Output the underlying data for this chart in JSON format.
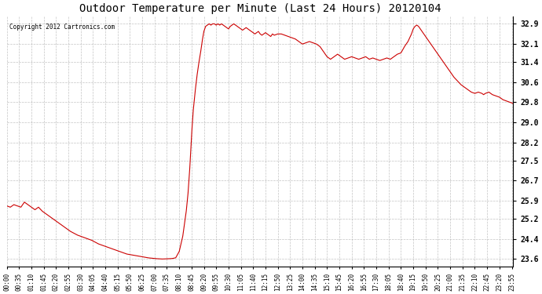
{
  "title": "Outdoor Temperature per Minute (Last 24 Hours) 20120104",
  "copyright_text": "Copyright 2012 Cartronics.com",
  "line_color": "#cc0000",
  "background_color": "#ffffff",
  "plot_bg_color": "#ffffff",
  "grid_color": "#aaaaaa",
  "yticks": [
    23.6,
    24.4,
    25.2,
    25.9,
    26.7,
    27.5,
    28.2,
    29.0,
    29.8,
    30.6,
    31.4,
    32.1,
    32.9
  ],
  "ylim": [
    23.3,
    33.2
  ],
  "xtick_labels": [
    "00:00",
    "00:35",
    "01:10",
    "01:45",
    "02:20",
    "02:55",
    "03:30",
    "04:05",
    "04:40",
    "05:15",
    "05:50",
    "06:25",
    "07:00",
    "07:35",
    "08:10",
    "08:45",
    "09:20",
    "09:55",
    "10:30",
    "11:05",
    "11:40",
    "12:15",
    "12:50",
    "13:25",
    "14:00",
    "14:35",
    "15:10",
    "15:45",
    "16:20",
    "16:55",
    "17:30",
    "18:05",
    "18:40",
    "19:15",
    "19:50",
    "20:25",
    "21:00",
    "21:35",
    "22:10",
    "22:45",
    "23:20",
    "23:55"
  ],
  "key_points": [
    [
      0,
      25.7
    ],
    [
      10,
      25.65
    ],
    [
      20,
      25.75
    ],
    [
      30,
      25.7
    ],
    [
      40,
      25.65
    ],
    [
      50,
      25.85
    ],
    [
      60,
      25.75
    ],
    [
      70,
      25.65
    ],
    [
      80,
      25.55
    ],
    [
      90,
      25.65
    ],
    [
      100,
      25.5
    ],
    [
      110,
      25.4
    ],
    [
      120,
      25.3
    ],
    [
      140,
      25.1
    ],
    [
      160,
      24.9
    ],
    [
      180,
      24.7
    ],
    [
      200,
      24.55
    ],
    [
      220,
      24.45
    ],
    [
      240,
      24.35
    ],
    [
      260,
      24.2
    ],
    [
      280,
      24.1
    ],
    [
      300,
      24.0
    ],
    [
      320,
      23.9
    ],
    [
      340,
      23.8
    ],
    [
      360,
      23.75
    ],
    [
      380,
      23.7
    ],
    [
      400,
      23.65
    ],
    [
      420,
      23.62
    ],
    [
      440,
      23.6
    ],
    [
      460,
      23.61
    ],
    [
      470,
      23.62
    ],
    [
      480,
      23.65
    ],
    [
      490,
      23.9
    ],
    [
      500,
      24.5
    ],
    [
      510,
      25.5
    ],
    [
      515,
      26.2
    ],
    [
      520,
      27.2
    ],
    [
      525,
      28.5
    ],
    [
      530,
      29.5
    ],
    [
      535,
      30.2
    ],
    [
      540,
      30.8
    ],
    [
      545,
      31.3
    ],
    [
      550,
      31.7
    ],
    [
      555,
      32.2
    ],
    [
      560,
      32.6
    ],
    [
      565,
      32.8
    ],
    [
      570,
      32.85
    ],
    [
      575,
      32.9
    ],
    [
      580,
      32.85
    ],
    [
      585,
      32.9
    ],
    [
      590,
      32.9
    ],
    [
      595,
      32.85
    ],
    [
      600,
      32.9
    ],
    [
      605,
      32.85
    ],
    [
      610,
      32.9
    ],
    [
      615,
      32.85
    ],
    [
      620,
      32.8
    ],
    [
      625,
      32.75
    ],
    [
      630,
      32.7
    ],
    [
      635,
      32.8
    ],
    [
      640,
      32.85
    ],
    [
      645,
      32.9
    ],
    [
      650,
      32.85
    ],
    [
      655,
      32.8
    ],
    [
      660,
      32.75
    ],
    [
      665,
      32.7
    ],
    [
      670,
      32.65
    ],
    [
      675,
      32.7
    ],
    [
      680,
      32.75
    ],
    [
      685,
      32.7
    ],
    [
      690,
      32.65
    ],
    [
      695,
      32.6
    ],
    [
      700,
      32.55
    ],
    [
      705,
      32.5
    ],
    [
      710,
      32.55
    ],
    [
      715,
      32.6
    ],
    [
      720,
      32.5
    ],
    [
      725,
      32.45
    ],
    [
      730,
      32.5
    ],
    [
      735,
      32.55
    ],
    [
      740,
      32.5
    ],
    [
      745,
      32.45
    ],
    [
      750,
      32.4
    ],
    [
      755,
      32.5
    ],
    [
      760,
      32.45
    ],
    [
      770,
      32.5
    ],
    [
      780,
      32.5
    ],
    [
      790,
      32.45
    ],
    [
      800,
      32.4
    ],
    [
      810,
      32.35
    ],
    [
      820,
      32.3
    ],
    [
      830,
      32.2
    ],
    [
      840,
      32.1
    ],
    [
      850,
      32.15
    ],
    [
      860,
      32.2
    ],
    [
      870,
      32.15
    ],
    [
      880,
      32.1
    ],
    [
      890,
      32.0
    ],
    [
      900,
      31.8
    ],
    [
      910,
      31.6
    ],
    [
      920,
      31.5
    ],
    [
      930,
      31.6
    ],
    [
      940,
      31.7
    ],
    [
      950,
      31.6
    ],
    [
      960,
      31.5
    ],
    [
      970,
      31.55
    ],
    [
      980,
      31.6
    ],
    [
      990,
      31.55
    ],
    [
      1000,
      31.5
    ],
    [
      1010,
      31.55
    ],
    [
      1020,
      31.6
    ],
    [
      1030,
      31.5
    ],
    [
      1040,
      31.55
    ],
    [
      1050,
      31.5
    ],
    [
      1060,
      31.45
    ],
    [
      1070,
      31.5
    ],
    [
      1080,
      31.55
    ],
    [
      1090,
      31.5
    ],
    [
      1100,
      31.6
    ],
    [
      1110,
      31.7
    ],
    [
      1120,
      31.75
    ],
    [
      1130,
      32.0
    ],
    [
      1140,
      32.2
    ],
    [
      1150,
      32.5
    ],
    [
      1155,
      32.7
    ],
    [
      1160,
      32.8
    ],
    [
      1165,
      32.85
    ],
    [
      1170,
      32.8
    ],
    [
      1175,
      32.7
    ],
    [
      1180,
      32.6
    ],
    [
      1185,
      32.5
    ],
    [
      1190,
      32.4
    ],
    [
      1195,
      32.3
    ],
    [
      1200,
      32.2
    ],
    [
      1210,
      32.0
    ],
    [
      1220,
      31.8
    ],
    [
      1230,
      31.6
    ],
    [
      1240,
      31.4
    ],
    [
      1250,
      31.2
    ],
    [
      1260,
      31.0
    ],
    [
      1270,
      30.8
    ],
    [
      1280,
      30.65
    ],
    [
      1290,
      30.5
    ],
    [
      1300,
      30.4
    ],
    [
      1310,
      30.3
    ],
    [
      1320,
      30.2
    ],
    [
      1330,
      30.15
    ],
    [
      1340,
      30.2
    ],
    [
      1350,
      30.15
    ],
    [
      1355,
      30.1
    ],
    [
      1360,
      30.15
    ],
    [
      1370,
      30.2
    ],
    [
      1375,
      30.15
    ],
    [
      1380,
      30.1
    ],
    [
      1390,
      30.05
    ],
    [
      1400,
      30.0
    ],
    [
      1410,
      29.9
    ],
    [
      1420,
      29.85
    ],
    [
      1430,
      29.8
    ],
    [
      1439,
      29.75
    ]
  ]
}
